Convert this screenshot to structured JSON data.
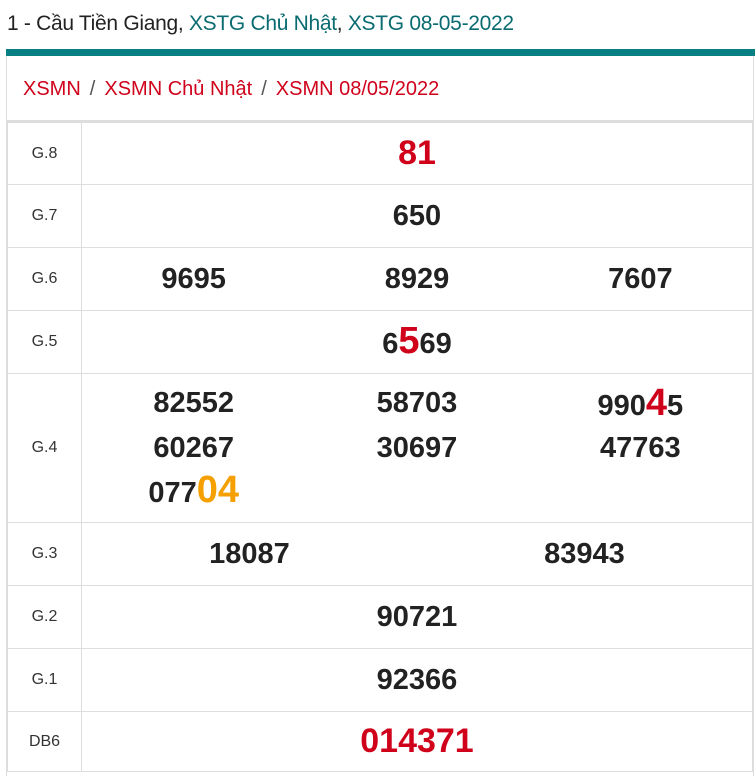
{
  "header": {
    "prefix": "1 - Cầu Tiền Giang, ",
    "link1": "XSTG Chủ Nhật",
    "comma": ", ",
    "link2": "XSTG 08-05-2022"
  },
  "breadcrumb": {
    "items": [
      "XSMN",
      "XSMN Chủ Nhật",
      "XSMN 08/05/2022"
    ],
    "separator": "/"
  },
  "colors": {
    "accent": "#087f82",
    "red": "#d0021b",
    "orange": "#f5a000"
  },
  "prizes": [
    {
      "label": "G.8",
      "cols": 1,
      "numbers": [
        [
          {
            "t": "81",
            "s": "red"
          }
        ]
      ]
    },
    {
      "label": "G.7",
      "cols": 1,
      "numbers": [
        [
          {
            "t": "650"
          }
        ]
      ]
    },
    {
      "label": "G.6",
      "cols": 3,
      "numbers": [
        [
          {
            "t": "9695"
          }
        ],
        [
          {
            "t": "8929"
          }
        ],
        [
          {
            "t": "7607"
          }
        ]
      ]
    },
    {
      "label": "G.5",
      "cols": 1,
      "numbers": [
        [
          {
            "t": "6"
          },
          {
            "t": "5",
            "s": "hl-red"
          },
          {
            "t": "69"
          }
        ]
      ]
    },
    {
      "label": "G.4",
      "cols": 3,
      "numbers": [
        [
          {
            "t": "82552"
          }
        ],
        [
          {
            "t": "58703"
          }
        ],
        [
          {
            "t": "990"
          },
          {
            "t": "4",
            "s": "hl-red"
          },
          {
            "t": "5"
          }
        ],
        [
          {
            "t": "60267"
          }
        ],
        [
          {
            "t": "30697"
          }
        ],
        [
          {
            "t": "47763"
          }
        ],
        [
          {
            "t": "077"
          },
          {
            "t": "04",
            "s": "hl-orange"
          }
        ]
      ]
    },
    {
      "label": "G.3",
      "cols": 2,
      "numbers": [
        [
          {
            "t": "18087"
          }
        ],
        [
          {
            "t": "83943"
          }
        ]
      ]
    },
    {
      "label": "G.2",
      "cols": 1,
      "numbers": [
        [
          {
            "t": "90721"
          }
        ]
      ]
    },
    {
      "label": "G.1",
      "cols": 1,
      "numbers": [
        [
          {
            "t": "92366"
          }
        ]
      ]
    },
    {
      "label": "DB6",
      "cols": 1,
      "numbers": [
        [
          {
            "t": "014371",
            "s": "red"
          }
        ]
      ]
    }
  ]
}
